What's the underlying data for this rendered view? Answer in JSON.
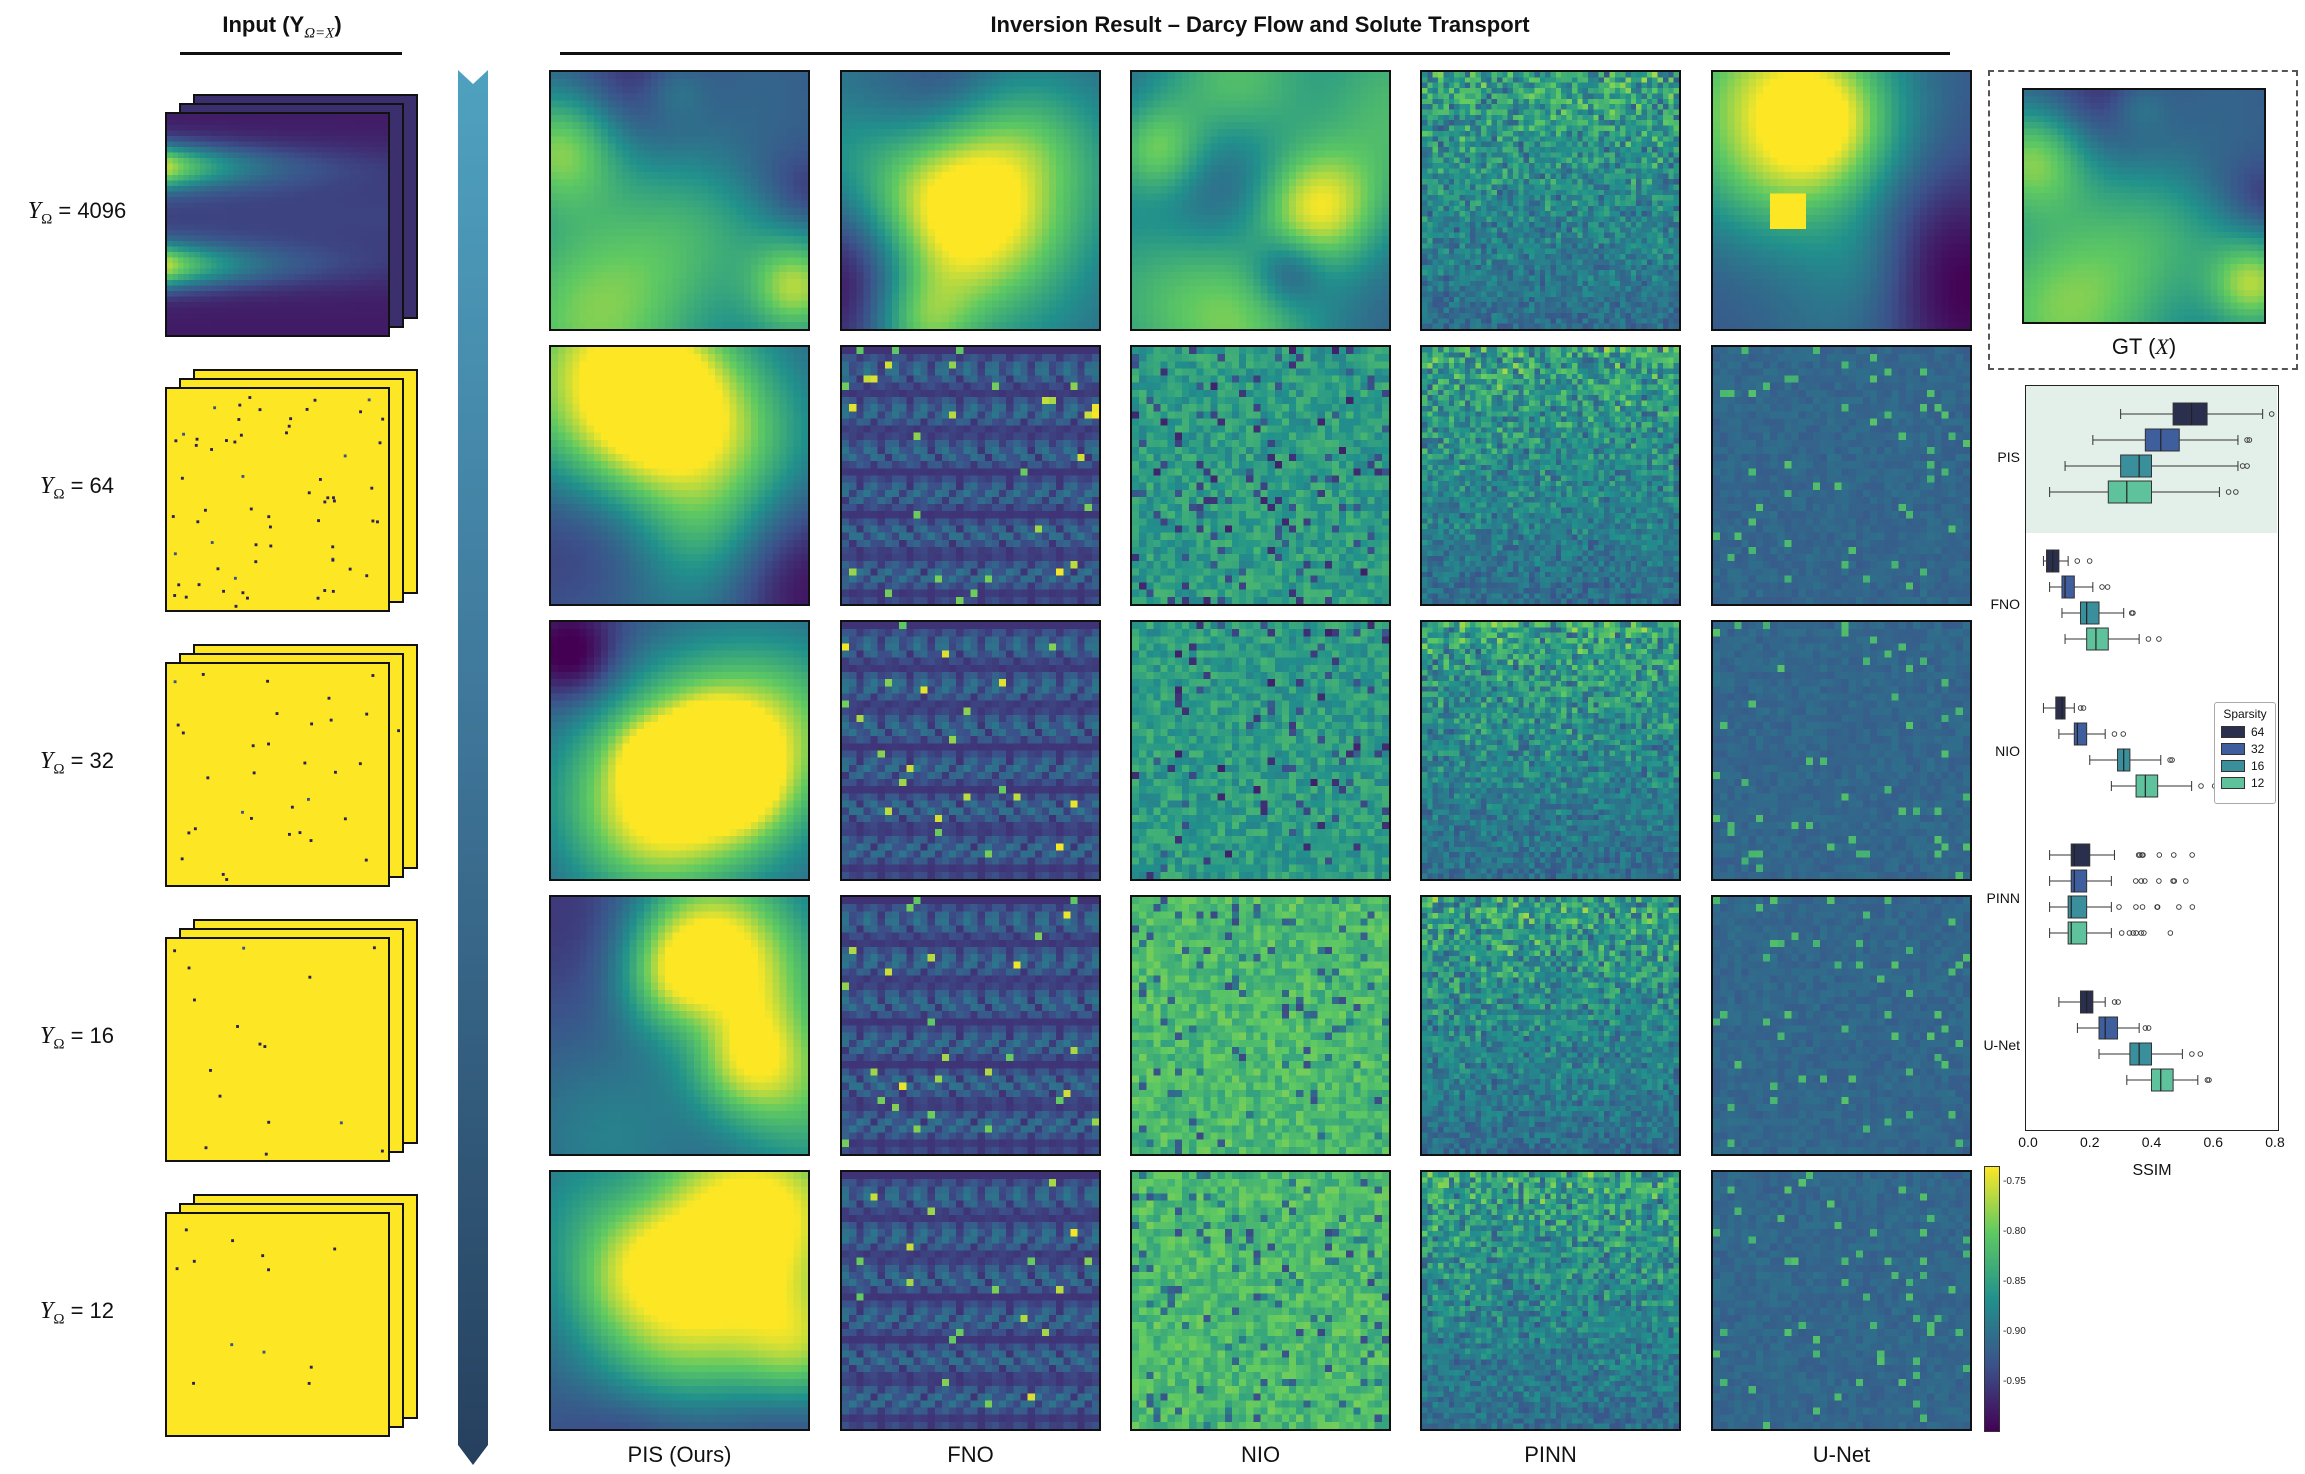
{
  "headers": {
    "input": "Input (Y",
    "input_sub": "Ω=X",
    "inversion": "Inversion Result – Darcy Flow and Solute Transport"
  },
  "rows": [
    {
      "label_sym": "Y",
      "label_sub": "Ω",
      "label_val": "= 4096"
    },
    {
      "label_sym": "Y",
      "label_sub": "Ω",
      "label_val": "= 64"
    },
    {
      "label_sym": "Y",
      "label_sub": "Ω",
      "label_val": "= 32"
    },
    {
      "label_sym": "Y",
      "label_sub": "Ω",
      "label_val": "= 16"
    },
    {
      "label_sym": "Y",
      "label_sub": "Ω",
      "label_val": "= 12"
    }
  ],
  "columns": [
    "PIS (Ours)",
    "FNO",
    "NIO",
    "PINN",
    "U-Net"
  ],
  "gt_label": "GT (X)",
  "ssim_chart": {
    "methods": [
      "PIS",
      "FNO",
      "NIO",
      "PINN",
      "U-Net"
    ],
    "xticks": [
      "0.0",
      "0.2",
      "0.4",
      "0.6",
      "0.8"
    ],
    "xlabel": "SSIM",
    "legend_title": "Sparsity",
    "legend": [
      "64",
      "32",
      "16",
      "12"
    ],
    "colors": [
      "#2b2f4e",
      "#3e5e9e",
      "#3a8f9c",
      "#5ec29c"
    ]
  },
  "colorbar": {
    "ticks": [
      "-0.75",
      "-0.80",
      "-0.85",
      "-0.90",
      "-0.95"
    ]
  },
  "chart_data": {
    "type": "box",
    "xlabel": "SSIM",
    "xlim": [
      0.0,
      0.8
    ],
    "legend_title": "Sparsity",
    "series": [
      {
        "name": "64",
        "boxes": [
          {
            "method": "PIS",
            "min": 0.3,
            "q1": 0.47,
            "median": 0.53,
            "q3": 0.58,
            "max": 0.76
          },
          {
            "method": "FNO",
            "min": 0.05,
            "q1": 0.06,
            "median": 0.08,
            "q3": 0.1,
            "max": 0.13
          },
          {
            "method": "NIO",
            "min": 0.05,
            "q1": 0.09,
            "median": 0.11,
            "q3": 0.12,
            "max": 0.15
          },
          {
            "method": "PINN",
            "min": 0.07,
            "q1": 0.14,
            "median": 0.15,
            "q3": 0.2,
            "max": 0.28
          },
          {
            "method": "U-Net",
            "min": 0.1,
            "q1": 0.17,
            "median": 0.19,
            "q3": 0.21,
            "max": 0.25
          }
        ]
      },
      {
        "name": "32",
        "boxes": [
          {
            "method": "PIS",
            "min": 0.21,
            "q1": 0.38,
            "median": 0.43,
            "q3": 0.49,
            "max": 0.68
          },
          {
            "method": "FNO",
            "min": 0.07,
            "q1": 0.11,
            "median": 0.12,
            "q3": 0.15,
            "max": 0.21
          },
          {
            "method": "NIO",
            "min": 0.1,
            "q1": 0.15,
            "median": 0.16,
            "q3": 0.19,
            "max": 0.25
          },
          {
            "method": "PINN",
            "min": 0.07,
            "q1": 0.14,
            "median": 0.15,
            "q3": 0.19,
            "max": 0.27
          },
          {
            "method": "U-Net",
            "min": 0.16,
            "q1": 0.23,
            "median": 0.25,
            "q3": 0.29,
            "max": 0.36
          }
        ]
      },
      {
        "name": "16",
        "boxes": [
          {
            "method": "PIS",
            "min": 0.12,
            "q1": 0.3,
            "median": 0.36,
            "q3": 0.4,
            "max": 0.68
          },
          {
            "method": "FNO",
            "min": 0.11,
            "q1": 0.17,
            "median": 0.19,
            "q3": 0.23,
            "max": 0.31
          },
          {
            "method": "NIO",
            "min": 0.2,
            "q1": 0.29,
            "median": 0.31,
            "q3": 0.33,
            "max": 0.43
          },
          {
            "method": "PINN",
            "min": 0.07,
            "q1": 0.13,
            "median": 0.14,
            "q3": 0.19,
            "max": 0.27
          },
          {
            "method": "U-Net",
            "min": 0.23,
            "q1": 0.33,
            "median": 0.36,
            "q3": 0.4,
            "max": 0.5
          }
        ]
      },
      {
        "name": "12",
        "boxes": [
          {
            "method": "PIS",
            "min": 0.07,
            "q1": 0.26,
            "median": 0.32,
            "q3": 0.4,
            "max": 0.62
          },
          {
            "method": "FNO",
            "min": 0.12,
            "q1": 0.19,
            "median": 0.22,
            "q3": 0.26,
            "max": 0.36
          },
          {
            "method": "NIO",
            "min": 0.27,
            "q1": 0.35,
            "median": 0.38,
            "q3": 0.42,
            "max": 0.53
          },
          {
            "method": "PINN",
            "min": 0.07,
            "q1": 0.13,
            "median": 0.14,
            "q3": 0.19,
            "max": 0.27
          },
          {
            "method": "U-Net",
            "min": 0.32,
            "q1": 0.4,
            "median": 0.43,
            "q3": 0.47,
            "max": 0.55
          }
        ]
      }
    ]
  }
}
